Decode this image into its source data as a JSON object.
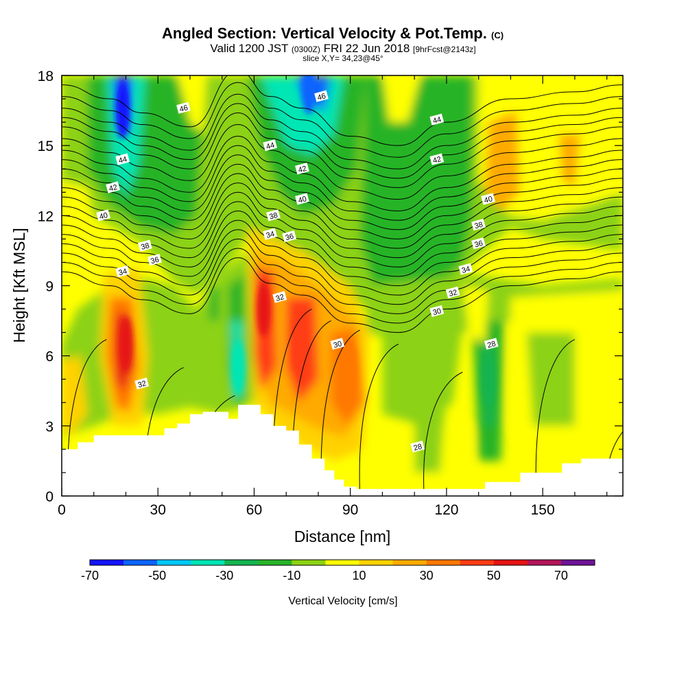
{
  "chart_data": {
    "type": "heatmap",
    "title_main": "Angled Section: Vertical Velocity & Pot.Temp.",
    "title_mark": "(C)",
    "subtitle_parts": [
      "Valid 1200 JST ",
      "(0300Z)",
      " FRI 22 Jun 2018 ",
      "[9hrFcst@2143z]"
    ],
    "slice_label": "slice X,Y= 34,23@45°",
    "xlabel": "Distance [nm]",
    "ylabel": "Height [Kft MSL]",
    "xlim": [
      0,
      175
    ],
    "ylim": [
      0,
      18
    ],
    "xticks": [
      0,
      30,
      60,
      90,
      120,
      150
    ],
    "xminor_step": 10,
    "yticks": [
      0,
      3,
      6,
      9,
      12,
      15,
      18
    ],
    "yminor_step": 1,
    "grid": false,
    "colorbar": {
      "title": "Vertical Velocity [cm/s]",
      "bounds": [
        -70,
        -60,
        -50,
        -40,
        -30,
        -20,
        -10,
        0,
        10,
        20,
        30,
        40,
        50,
        60,
        70,
        80
      ],
      "colors": [
        "#1414ff",
        "#0a64ff",
        "#00c8ff",
        "#00e6b4",
        "#14b450",
        "#28b428",
        "#8cd214",
        "#ffff00",
        "#ffd200",
        "#ffaa00",
        "#ff7800",
        "#ff3c14",
        "#e61414",
        "#b4145a",
        "#6e1496"
      ],
      "tick_labels": [
        -70,
        -50,
        -30,
        -10,
        10,
        30,
        50,
        70
      ]
    },
    "wind_vertical_velocity_features": [
      {
        "x": 20,
        "z": 6.5,
        "w": 55,
        "label": "updraft"
      },
      {
        "x": 63,
        "z": 8,
        "w": 50,
        "label": "updraft"
      },
      {
        "x": 74,
        "z": 6.5,
        "w": 45,
        "label": "updraft"
      },
      {
        "x": 90,
        "z": 5.5,
        "w": 35,
        "label": "updraft"
      },
      {
        "x": 19,
        "z": 16.5,
        "w": -65,
        "label": "downdraft"
      },
      {
        "x": 77,
        "z": 17.5,
        "w": -55,
        "label": "downdraft"
      },
      {
        "x": 55,
        "z": 5.5,
        "w": -35,
        "label": "downdraft"
      },
      {
        "x": 133,
        "z": 5,
        "w": -25,
        "label": "downdraft"
      }
    ],
    "terrain_top_kft": [
      [
        0,
        2.0
      ],
      [
        5,
        2.3
      ],
      [
        10,
        2.6
      ],
      [
        30,
        2.6
      ],
      [
        32,
        2.9
      ],
      [
        36,
        3.1
      ],
      [
        40,
        3.5
      ],
      [
        44,
        3.6
      ],
      [
        48,
        3.6
      ],
      [
        52,
        3.3
      ],
      [
        55,
        3.9
      ],
      [
        59,
        3.9
      ],
      [
        62,
        3.5
      ],
      [
        66,
        3.0
      ],
      [
        70,
        2.8
      ],
      [
        74,
        2.2
      ],
      [
        78,
        1.6
      ],
      [
        82,
        1.1
      ],
      [
        85,
        0.7
      ],
      [
        88,
        0.4
      ],
      [
        92,
        0.3
      ],
      [
        128,
        0.3
      ],
      [
        132,
        0.6
      ],
      [
        140,
        0.6
      ],
      [
        143,
        1.0
      ],
      [
        150,
        1.0
      ],
      [
        156,
        1.4
      ],
      [
        160,
        1.4
      ],
      [
        162,
        1.6
      ],
      [
        175,
        1.6
      ]
    ],
    "isentrope_labels": [
      {
        "x": 38,
        "z": 16.6,
        "text": "46"
      },
      {
        "x": 81,
        "z": 17.1,
        "text": "46"
      },
      {
        "x": 19,
        "z": 14.4,
        "text": "44"
      },
      {
        "x": 65,
        "z": 15.0,
        "text": "44"
      },
      {
        "x": 117,
        "z": 16.1,
        "text": "44"
      },
      {
        "x": 16,
        "z": 13.2,
        "text": "42"
      },
      {
        "x": 75,
        "z": 14.0,
        "text": "42"
      },
      {
        "x": 117,
        "z": 14.4,
        "text": "42"
      },
      {
        "x": 13,
        "z": 12.0,
        "text": "40"
      },
      {
        "x": 75,
        "z": 12.7,
        "text": "40"
      },
      {
        "x": 133,
        "z": 12.7,
        "text": "40"
      },
      {
        "x": 66,
        "z": 12.0,
        "text": "38"
      },
      {
        "x": 26,
        "z": 10.7,
        "text": "38"
      },
      {
        "x": 130,
        "z": 11.6,
        "text": "38"
      },
      {
        "x": 29,
        "z": 10.1,
        "text": "36"
      },
      {
        "x": 71,
        "z": 11.1,
        "text": "36"
      },
      {
        "x": 130,
        "z": 10.8,
        "text": "36"
      },
      {
        "x": 19,
        "z": 9.6,
        "text": "34"
      },
      {
        "x": 65,
        "z": 11.2,
        "text": "34"
      },
      {
        "x": 126,
        "z": 9.7,
        "text": "34"
      },
      {
        "x": 122,
        "z": 8.7,
        "text": "32"
      },
      {
        "x": 68,
        "z": 8.5,
        "text": "32"
      },
      {
        "x": 25,
        "z": 4.8,
        "text": "32"
      },
      {
        "x": 117,
        "z": 7.9,
        "text": "30"
      },
      {
        "x": 86,
        "z": 6.5,
        "text": "30"
      },
      {
        "x": 134,
        "z": 6.5,
        "text": "28"
      },
      {
        "x": 111,
        "z": 2.1,
        "text": "28"
      }
    ]
  }
}
